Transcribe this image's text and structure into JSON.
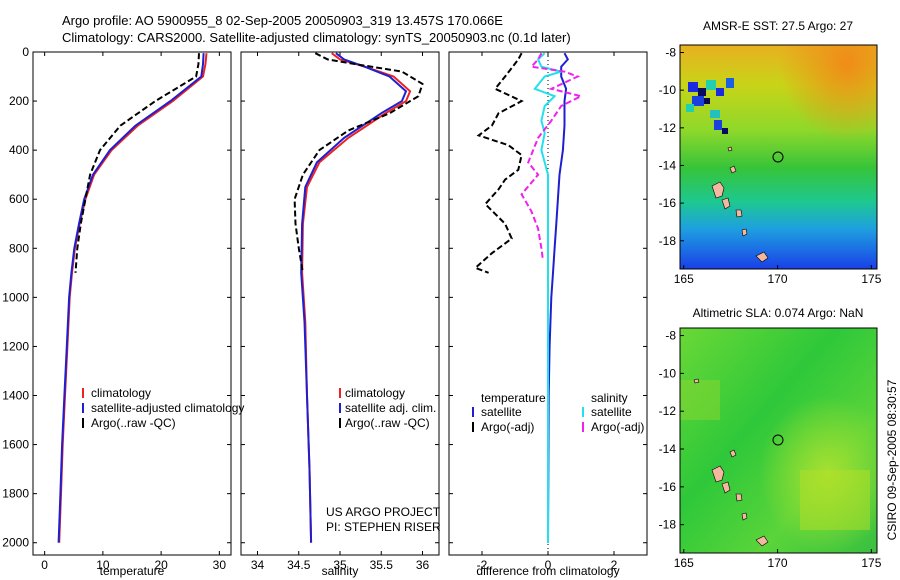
{
  "header": {
    "title_line1": "Argo profile: AO 5900955_8 02-Sep-2005 20050903_319 13.457S 170.066E",
    "title_line2": "Climatology: CARS2000. Satellite-adjusted climatology: synTS_20050903.nc (0.1d later)"
  },
  "credit": {
    "line1": "US ARGO PROJECT",
    "line2": "PI: STEPHEN RISER"
  },
  "side_stamp": "CSIRO 09-Sep-2005 08:30:57",
  "colors": {
    "climatology": "#ee2222",
    "satellite": "#1f1fd0",
    "argo": "#000000",
    "satellite_diff_sal": "#22e0ee",
    "argo_diff_sal": "#ee22ee"
  },
  "chart_data": [
    {
      "type": "line",
      "id": "temperature",
      "xlabel": "temperature",
      "ylabel": "",
      "xlim": [
        -2,
        32
      ],
      "ylim": [
        2050,
        0
      ],
      "xticks": [
        0,
        10,
        20,
        30
      ],
      "yticks": [
        0,
        200,
        400,
        600,
        800,
        1000,
        1200,
        1400,
        1600,
        1800,
        2000
      ],
      "legend": {
        "placement": "bottom-left",
        "entries": [
          "climatology",
          "satellite-adjusted climatology",
          "Argo(..raw -QC)"
        ]
      },
      "series": [
        {
          "name": "climatology",
          "style": "solid",
          "color_key": "climatology",
          "points": [
            [
              27.8,
              5
            ],
            [
              27.6,
              50
            ],
            [
              27.2,
              100
            ],
            [
              22,
              200
            ],
            [
              16,
              300
            ],
            [
              11.5,
              400
            ],
            [
              8.5,
              500
            ],
            [
              7,
              600
            ],
            [
              6,
              700
            ],
            [
              5.2,
              800
            ],
            [
              4.7,
              900
            ],
            [
              4.3,
              1000
            ],
            [
              3.9,
              1200
            ],
            [
              3.5,
              1400
            ],
            [
              3.1,
              1600
            ],
            [
              2.8,
              1800
            ],
            [
              2.5,
              2000
            ]
          ]
        },
        {
          "name": "satellite-adjusted climatology",
          "style": "solid",
          "color_key": "satellite",
          "points": [
            [
              27.3,
              5
            ],
            [
              27.2,
              50
            ],
            [
              26.9,
              100
            ],
            [
              21.6,
              200
            ],
            [
              15.6,
              300
            ],
            [
              11.2,
              400
            ],
            [
              8.3,
              500
            ],
            [
              6.8,
              600
            ],
            [
              5.9,
              700
            ],
            [
              5.1,
              800
            ],
            [
              4.6,
              900
            ],
            [
              4.2,
              1000
            ],
            [
              3.8,
              1200
            ],
            [
              3.4,
              1400
            ],
            [
              3.0,
              1600
            ],
            [
              2.7,
              1800
            ],
            [
              2.4,
              2000
            ]
          ]
        },
        {
          "name": "Argo(..raw -QC)",
          "style": "dashed",
          "color_key": "argo",
          "points": [
            [
              26.5,
              5
            ],
            [
              26.4,
              50
            ],
            [
              26,
              100
            ],
            [
              19,
              200
            ],
            [
              13,
              300
            ],
            [
              9.5,
              400
            ],
            [
              7.8,
              500
            ],
            [
              7,
              600
            ],
            [
              6.2,
              700
            ],
            [
              5.6,
              800
            ],
            [
              5.3,
              900
            ]
          ]
        }
      ]
    },
    {
      "type": "line",
      "id": "salinity",
      "xlabel": "salinity",
      "ylabel": "",
      "xlim": [
        33.8,
        36.2
      ],
      "ylim": [
        2050,
        0
      ],
      "xticks": [
        34,
        34.5,
        35,
        35.5,
        36
      ],
      "yticks": [
        0,
        200,
        400,
        600,
        800,
        1000,
        1200,
        1400,
        1600,
        1800,
        2000
      ],
      "legend": {
        "placement": "bottom-right",
        "entries": [
          "climatology",
          "satellite adj. clim.",
          "Argo(..raw -QC)"
        ]
      },
      "series": [
        {
          "name": "climatology",
          "style": "solid",
          "color_key": "climatology",
          "points": [
            [
              34.9,
              5
            ],
            [
              35.0,
              30
            ],
            [
              35.3,
              60
            ],
            [
              35.65,
              100
            ],
            [
              35.85,
              160
            ],
            [
              35.8,
              200
            ],
            [
              35.55,
              250
            ],
            [
              35.1,
              350
            ],
            [
              34.75,
              450
            ],
            [
              34.6,
              550
            ],
            [
              34.55,
              700
            ],
            [
              34.54,
              900
            ],
            [
              34.58,
              1100
            ],
            [
              34.6,
              1400
            ],
            [
              34.63,
              1700
            ],
            [
              34.65,
              2000
            ]
          ]
        },
        {
          "name": "satellite adj. clim.",
          "style": "solid",
          "color_key": "satellite",
          "points": [
            [
              34.95,
              5
            ],
            [
              35.05,
              30
            ],
            [
              35.3,
              60
            ],
            [
              35.6,
              100
            ],
            [
              35.8,
              160
            ],
            [
              35.75,
              200
            ],
            [
              35.5,
              250
            ],
            [
              35.05,
              350
            ],
            [
              34.72,
              450
            ],
            [
              34.58,
              550
            ],
            [
              34.54,
              700
            ],
            [
              34.53,
              900
            ],
            [
              34.57,
              1100
            ],
            [
              34.6,
              1400
            ],
            [
              34.63,
              1700
            ],
            [
              34.65,
              2000
            ]
          ]
        },
        {
          "name": "Argo(..raw -QC)",
          "style": "dashed",
          "color_key": "argo",
          "points": [
            [
              34.7,
              5
            ],
            [
              34.85,
              30
            ],
            [
              35.2,
              50
            ],
            [
              35.75,
              80
            ],
            [
              36.0,
              130
            ],
            [
              35.95,
              180
            ],
            [
              35.6,
              250
            ],
            [
              35.1,
              320
            ],
            [
              34.75,
              400
            ],
            [
              34.55,
              500
            ],
            [
              34.45,
              600
            ],
            [
              34.46,
              700
            ],
            [
              34.5,
              800
            ],
            [
              34.55,
              900
            ]
          ]
        }
      ]
    },
    {
      "type": "line",
      "id": "difference",
      "xlabel": "difference from climatology",
      "ylabel": "",
      "xlim": [
        -3,
        3
      ],
      "ylim": [
        2050,
        0
      ],
      "xticks": [
        -2,
        0,
        2
      ],
      "yticks": [
        0,
        200,
        400,
        600,
        800,
        1000,
        1200,
        1400,
        1600,
        1800,
        2000
      ],
      "legend": {
        "placement": "bottom",
        "col_headers": [
          "temperature",
          "salinity"
        ],
        "entries": [
          "satellite",
          "Argo(-adj)",
          "satellite",
          "Argo(-adj)"
        ]
      },
      "series": [
        {
          "name": "satellite",
          "group": "temperature",
          "style": "solid",
          "color_key": "satellite",
          "points": [
            [
              0.5,
              5
            ],
            [
              0.6,
              30
            ],
            [
              0.4,
              60
            ],
            [
              0.4,
              100
            ],
            [
              0.55,
              150
            ],
            [
              0.5,
              200
            ],
            [
              0.5,
              300
            ],
            [
              0.45,
              400
            ],
            [
              0.35,
              500
            ],
            [
              0.3,
              600
            ],
            [
              0.25,
              700
            ],
            [
              0.2,
              800
            ],
            [
              0.15,
              900
            ],
            [
              0.1,
              1000
            ],
            [
              0.05,
              1200
            ],
            [
              0.02,
              1400
            ],
            [
              0,
              2000
            ]
          ]
        },
        {
          "name": "Argo(-adj)",
          "group": "temperature",
          "style": "dashed",
          "color_key": "argo",
          "points": [
            [
              -0.8,
              5
            ],
            [
              -0.9,
              30
            ],
            [
              -1.3,
              100
            ],
            [
              -1.6,
              150
            ],
            [
              -0.8,
              200
            ],
            [
              -1.5,
              250
            ],
            [
              -1.7,
              300
            ],
            [
              -2.1,
              340
            ],
            [
              -1.2,
              380
            ],
            [
              -0.8,
              420
            ],
            [
              -0.9,
              480
            ],
            [
              -1.3,
              520
            ],
            [
              -1.5,
              560
            ],
            [
              -1.9,
              620
            ],
            [
              -1.6,
              660
            ],
            [
              -1.3,
              700
            ],
            [
              -1.1,
              760
            ],
            [
              -1.7,
              820
            ],
            [
              -2.2,
              880
            ],
            [
              -1.8,
              900
            ]
          ]
        },
        {
          "name": "satellite",
          "group": "salinity",
          "style": "solid",
          "color_key": "satellite_diff_sal",
          "points": [
            [
              -0.1,
              5
            ],
            [
              -0.3,
              30
            ],
            [
              -0.2,
              60
            ],
            [
              0.4,
              80
            ],
            [
              -0.1,
              100
            ],
            [
              -0.4,
              150
            ],
            [
              0.2,
              180
            ],
            [
              -0.1,
              220
            ],
            [
              -0.2,
              280
            ],
            [
              -0.1,
              330
            ],
            [
              -0.2,
              400
            ],
            [
              0,
              500
            ],
            [
              0,
              600
            ],
            [
              0,
              800
            ],
            [
              0,
              1000
            ],
            [
              0,
              1400
            ],
            [
              0,
              2000
            ]
          ]
        },
        {
          "name": "Argo(-adj)",
          "group": "salinity",
          "style": "dashed",
          "color_key": "argo_diff_sal",
          "points": [
            [
              -0.2,
              5
            ],
            [
              -0.3,
              30
            ],
            [
              -0.5,
              60
            ],
            [
              0.5,
              80
            ],
            [
              0.9,
              100
            ],
            [
              0.1,
              150
            ],
            [
              1.0,
              180
            ],
            [
              0.4,
              220
            ],
            [
              0.1,
              280
            ],
            [
              -0.3,
              350
            ],
            [
              -0.6,
              450
            ],
            [
              -0.3,
              500
            ],
            [
              -0.8,
              580
            ],
            [
              -0.5,
              650
            ],
            [
              -0.3,
              720
            ],
            [
              -0.2,
              800
            ],
            [
              -0.15,
              850
            ]
          ]
        }
      ]
    },
    {
      "type": "heatmap",
      "id": "sst_map",
      "title": "AMSR-E SST: 27.5 Argo: 27",
      "xlim": [
        164.8,
        175.3
      ],
      "ylim": [
        -19.5,
        -7.6
      ],
      "xticks": [
        165,
        170,
        175
      ],
      "yticks": [
        -8,
        -10,
        -12,
        -14,
        -16,
        -18
      ],
      "marker": [
        170.066,
        -13.457
      ]
    },
    {
      "type": "heatmap",
      "id": "sla_map",
      "title": "Altimetric SLA: 0.074 Argo: NaN",
      "xlim": [
        164.8,
        175.3
      ],
      "ylim": [
        -19.5,
        -7.6
      ],
      "xticks": [
        165,
        170,
        175
      ],
      "yticks": [
        -8,
        -10,
        -12,
        -14,
        -16,
        -18
      ],
      "marker": [
        170.066,
        -13.457
      ]
    }
  ]
}
